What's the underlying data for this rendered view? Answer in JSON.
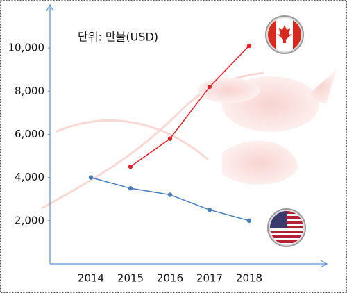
{
  "chart_data": {
    "type": "line",
    "annotation": "단위: 만불(USD)",
    "categories": [
      "2014",
      "2015",
      "2016",
      "2017",
      "2018"
    ],
    "series": [
      {
        "color": "#e8202a",
        "values": [
          null,
          4500,
          5800,
          8200,
          10100
        ]
      },
      {
        "color": "#4a7ebb",
        "values": [
          4000,
          3500,
          3200,
          2500,
          2000
        ]
      }
    ],
    "ylim": [
      0,
      11900
    ],
    "yticks": [
      {
        "value": 2000,
        "label": "2,000"
      },
      {
        "value": 4000,
        "label": "4,000"
      },
      {
        "value": 6000,
        "label": "6,000"
      },
      {
        "value": 8000,
        "label": "8,000"
      },
      {
        "value": 10000,
        "label": "10,000"
      }
    ],
    "grid": false
  }
}
